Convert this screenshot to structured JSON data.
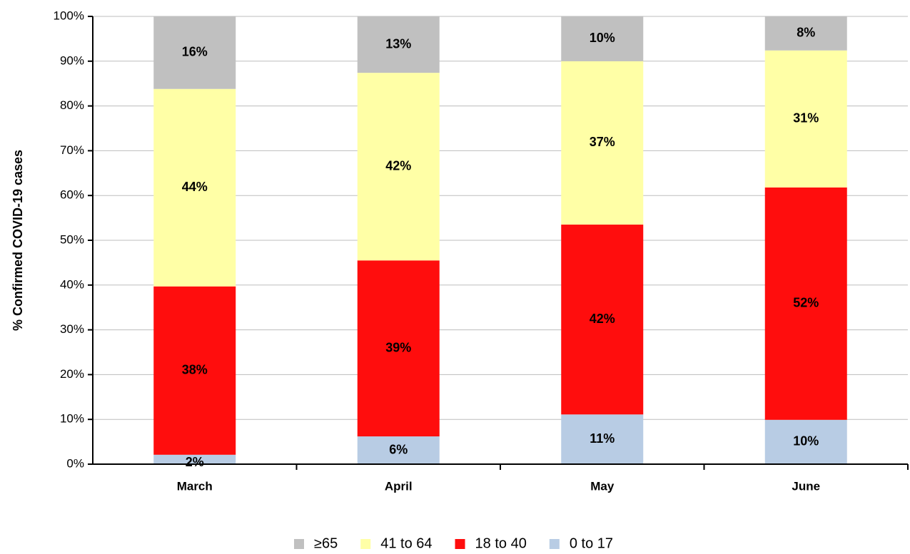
{
  "chart_data": {
    "type": "stacked-bar",
    "y_label": "% Confirmed COVID-19 cases",
    "categories": [
      "March",
      "April",
      "May",
      "June"
    ],
    "series": [
      {
        "name": "0 to 17",
        "color": "#b8cce4",
        "values": [
          2.1,
          6.2,
          11.1,
          9.9
        ],
        "value_labels": [
          "2%",
          "6%",
          "11%",
          "10%"
        ]
      },
      {
        "name": "18 to 40",
        "color": "#ff0d0d",
        "values": [
          37.6,
          39.3,
          42.4,
          51.9
        ],
        "value_labels": [
          "38%",
          "39%",
          "42%",
          "52%"
        ]
      },
      {
        "name": "41 to 64",
        "color": "#ffffa6",
        "values": [
          44.1,
          41.9,
          36.5,
          30.6
        ],
        "value_labels": [
          "44%",
          "42%",
          "37%",
          "31%"
        ]
      },
      {
        "name": "≥65",
        "color": "#c0c0c0",
        "values": [
          16.2,
          12.6,
          10.0,
          7.6
        ],
        "value_labels": [
          "16%",
          "13%",
          "10%",
          "8%"
        ]
      }
    ],
    "ylim": [
      0,
      100
    ],
    "yticks": [
      {
        "value": 0,
        "label": "0%"
      },
      {
        "value": 10,
        "label": "10%"
      },
      {
        "value": 20,
        "label": "20%"
      },
      {
        "value": 30,
        "label": "30%"
      },
      {
        "value": 40,
        "label": "40%"
      },
      {
        "value": 50,
        "label": "50%"
      },
      {
        "value": 60,
        "label": "60%"
      },
      {
        "value": 70,
        "label": "70%"
      },
      {
        "value": 80,
        "label": "80%"
      },
      {
        "value": 90,
        "label": "90%"
      },
      {
        "value": 100,
        "label": "100%"
      }
    ],
    "grid": true,
    "legend": "bottom"
  }
}
